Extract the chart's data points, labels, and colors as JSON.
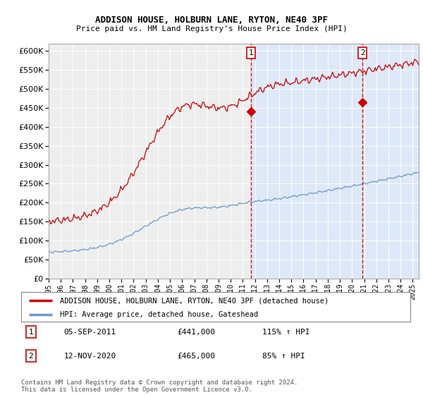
{
  "title1": "ADDISON HOUSE, HOLBURN LANE, RYTON, NE40 3PF",
  "title2": "Price paid vs. HM Land Registry's House Price Index (HPI)",
  "ylim": [
    0,
    620000
  ],
  "yticks": [
    0,
    50000,
    100000,
    150000,
    200000,
    250000,
    300000,
    350000,
    400000,
    450000,
    500000,
    550000,
    600000
  ],
  "xstart": 1995,
  "xend": 2025.5,
  "transaction1_date": 2011.67,
  "transaction1_price": 441000,
  "transaction2_date": 2020.87,
  "transaction2_price": 465000,
  "red_color": "#cc0000",
  "blue_color": "#6699cc",
  "bg_color_main": "#f0f0f0",
  "bg_color_shaded": "#dde8f8",
  "legend_line1": "ADDISON HOUSE, HOLBURN LANE, RYTON, NE40 3PF (detached house)",
  "legend_line2": "HPI: Average price, detached house, Gateshead",
  "annotation1_label": "1",
  "annotation1_date": "05-SEP-2011",
  "annotation1_price": "£441,000",
  "annotation1_hpi": "115% ↑ HPI",
  "annotation2_label": "2",
  "annotation2_date": "12-NOV-2020",
  "annotation2_price": "£465,000",
  "annotation2_hpi": "85% ↑ HPI",
  "footer": "Contains HM Land Registry data © Crown copyright and database right 2024.\nThis data is licensed under the Open Government Licence v3.0."
}
